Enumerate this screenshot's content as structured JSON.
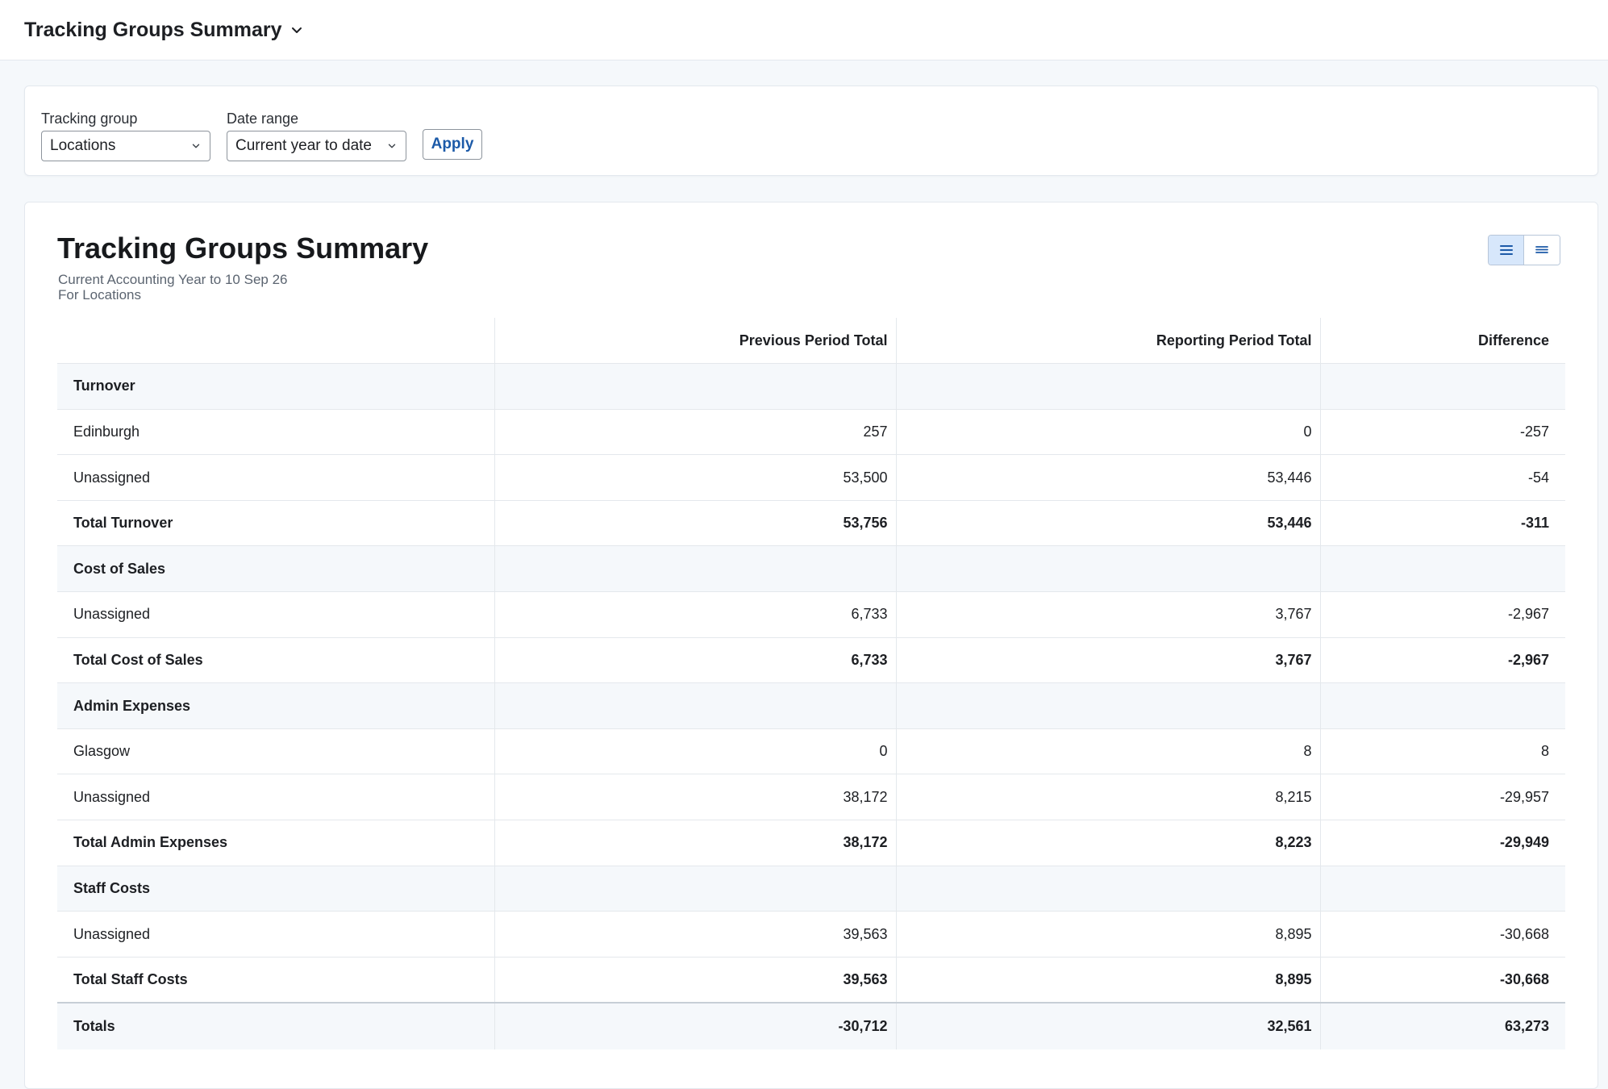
{
  "header": {
    "title": "Tracking Groups Summary"
  },
  "filters": {
    "tracking_group": {
      "label": "Tracking group",
      "value": "Locations"
    },
    "date_range": {
      "label": "Date range",
      "value": "Current year to date"
    },
    "apply_label": "Apply"
  },
  "report": {
    "title": "Tracking Groups Summary",
    "subtitle_line1": "Current Accounting Year to 10 Sep 26",
    "subtitle_line2": "For Locations",
    "columns": [
      "",
      "Previous Period Total",
      "Reporting Period Total",
      "Difference"
    ],
    "rows": [
      {
        "type": "section",
        "label": "Turnover"
      },
      {
        "type": "item",
        "label": "Edinburgh",
        "prev": "257",
        "curr": "0",
        "diff": "-257"
      },
      {
        "type": "item",
        "label": "Unassigned",
        "prev": "53,500",
        "curr": "53,446",
        "diff": "-54"
      },
      {
        "type": "total",
        "label": "Total Turnover",
        "prev": "53,756",
        "curr": "53,446",
        "diff": "-311"
      },
      {
        "type": "section",
        "label": "Cost of Sales"
      },
      {
        "type": "item",
        "label": "Unassigned",
        "prev": "6,733",
        "curr": "3,767",
        "diff": "-2,967"
      },
      {
        "type": "total",
        "label": "Total Cost of Sales",
        "prev": "6,733",
        "curr": "3,767",
        "diff": "-2,967"
      },
      {
        "type": "section",
        "label": "Admin Expenses"
      },
      {
        "type": "item",
        "label": "Glasgow",
        "prev": "0",
        "curr": "8",
        "diff": "8"
      },
      {
        "type": "item",
        "label": "Unassigned",
        "prev": "38,172",
        "curr": "8,215",
        "diff": "-29,957"
      },
      {
        "type": "total",
        "label": "Total Admin Expenses",
        "prev": "38,172",
        "curr": "8,223",
        "diff": "-29,949"
      },
      {
        "type": "section",
        "label": "Staff Costs"
      },
      {
        "type": "item",
        "label": "Unassigned",
        "prev": "39,563",
        "curr": "8,895",
        "diff": "-30,668"
      },
      {
        "type": "total",
        "label": "Total Staff Costs",
        "prev": "39,563",
        "curr": "8,895",
        "diff": "-30,668"
      }
    ],
    "grand_total": {
      "label": "Totals",
      "prev": "-30,712",
      "curr": "32,561",
      "diff": "63,273"
    }
  },
  "icons": {
    "dropdown": "chevron-down-icon",
    "view_compact": "list-icon",
    "view_expanded": "menu-icon"
  }
}
